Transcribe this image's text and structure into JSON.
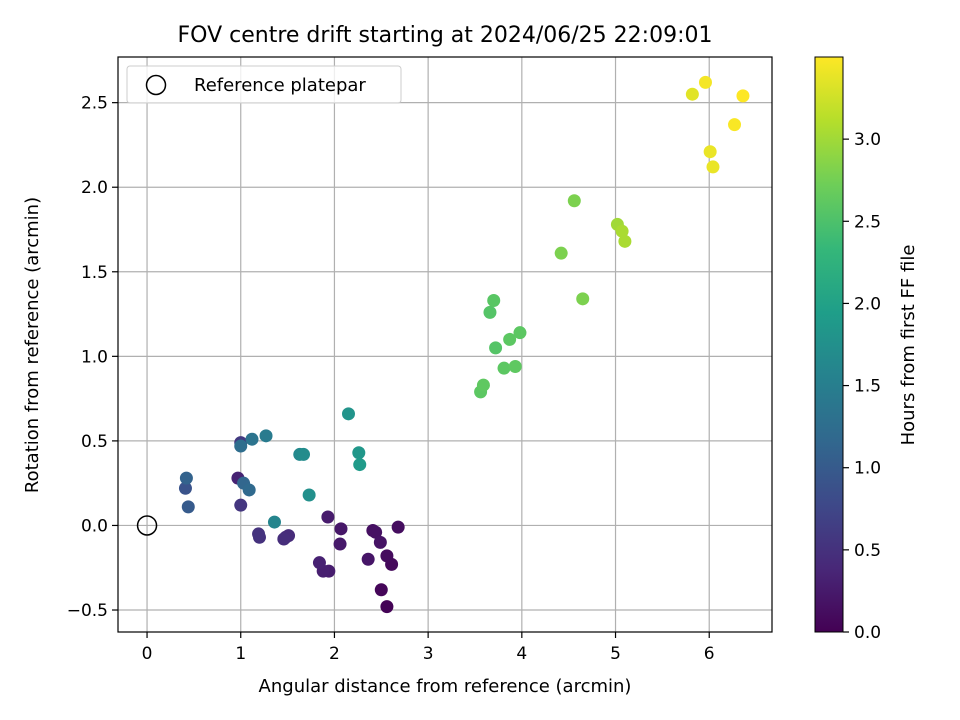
{
  "chart_data": {
    "type": "scatter",
    "title": "FOV centre drift starting at 2024/06/25 22:09:01",
    "xlabel": "Angular distance from reference (arcmin)",
    "ylabel": "Rotation from reference (arcmin)",
    "xlim": [
      -0.31,
      6.67
    ],
    "ylim": [
      -0.63,
      2.77
    ],
    "xticks": [
      0,
      1,
      2,
      3,
      4,
      5,
      6
    ],
    "xtick_labels": [
      "0",
      "1",
      "2",
      "3",
      "4",
      "5",
      "6"
    ],
    "yticks": [
      -0.5,
      0.0,
      0.5,
      1.0,
      1.5,
      2.0,
      2.5
    ],
    "ytick_labels": [
      "−0.5",
      "0.0",
      "0.5",
      "1.0",
      "1.5",
      "2.0",
      "2.5"
    ],
    "grid": true,
    "legend": {
      "position": "top-left",
      "entries": [
        "Reference platepar"
      ]
    },
    "reference_point": {
      "x": 0,
      "y": 0,
      "label": "Reference platepar"
    },
    "colorbar": {
      "label": "Hours from first FF file",
      "min": 0.0,
      "max": 3.5,
      "ticks": [
        0.0,
        0.5,
        1.0,
        1.5,
        2.0,
        2.5,
        3.0
      ],
      "tick_labels": [
        "0.0",
        "0.5",
        "1.0",
        "1.5",
        "2.0",
        "2.5",
        "3.0"
      ],
      "colormap": "viridis",
      "stops": [
        "#440154",
        "#482878",
        "#3e4989",
        "#31688e",
        "#26828e",
        "#1f9e89",
        "#35b779",
        "#6ece58",
        "#b5de2b",
        "#fde725"
      ]
    },
    "points": [
      {
        "x": 2.56,
        "y": -0.48,
        "t": 0.02
      },
      {
        "x": 2.5,
        "y": -0.38,
        "t": 0.05
      },
      {
        "x": 2.61,
        "y": -0.23,
        "t": 0.08
      },
      {
        "x": 2.56,
        "y": -0.18,
        "t": 0.1
      },
      {
        "x": 2.68,
        "y": -0.01,
        "t": 0.12
      },
      {
        "x": 2.41,
        "y": -0.03,
        "t": 0.14
      },
      {
        "x": 2.44,
        "y": -0.04,
        "t": 0.16
      },
      {
        "x": 2.49,
        "y": -0.1,
        "t": 0.18
      },
      {
        "x": 2.36,
        "y": -0.2,
        "t": 0.2
      },
      {
        "x": 2.07,
        "y": -0.02,
        "t": 0.22
      },
      {
        "x": 2.06,
        "y": -0.11,
        "t": 0.24
      },
      {
        "x": 1.93,
        "y": 0.05,
        "t": 0.26
      },
      {
        "x": 1.94,
        "y": -0.27,
        "t": 0.28
      },
      {
        "x": 1.88,
        "y": -0.27,
        "t": 0.3
      },
      {
        "x": 1.84,
        "y": -0.22,
        "t": 0.32
      },
      {
        "x": 0.97,
        "y": 0.28,
        "t": 0.34
      },
      {
        "x": 1.48,
        "y": -0.07,
        "t": 0.42
      },
      {
        "x": 1.51,
        "y": -0.06,
        "t": 0.44
      },
      {
        "x": 1.46,
        "y": -0.08,
        "t": 0.46
      },
      {
        "x": 1.2,
        "y": -0.07,
        "t": 0.5
      },
      {
        "x": 1.19,
        "y": -0.05,
        "t": 0.52
      },
      {
        "x": 1.0,
        "y": 0.12,
        "t": 0.55
      },
      {
        "x": 1.0,
        "y": 0.49,
        "t": 0.6
      },
      {
        "x": 0.41,
        "y": 0.22,
        "t": 0.9
      },
      {
        "x": 0.44,
        "y": 0.11,
        "t": 1.0
      },
      {
        "x": 0.42,
        "y": 0.28,
        "t": 1.1
      },
      {
        "x": 1.03,
        "y": 0.25,
        "t": 1.15
      },
      {
        "x": 1.09,
        "y": 0.21,
        "t": 1.2
      },
      {
        "x": 1.0,
        "y": 0.47,
        "t": 1.25
      },
      {
        "x": 1.12,
        "y": 0.51,
        "t": 1.35
      },
      {
        "x": 1.27,
        "y": 0.53,
        "t": 1.45
      },
      {
        "x": 1.36,
        "y": 0.02,
        "t": 1.6
      },
      {
        "x": 1.63,
        "y": 0.42,
        "t": 1.65
      },
      {
        "x": 1.67,
        "y": 0.42,
        "t": 1.7
      },
      {
        "x": 1.73,
        "y": 0.18,
        "t": 1.75
      },
      {
        "x": 2.15,
        "y": 0.66,
        "t": 1.8
      },
      {
        "x": 2.26,
        "y": 0.43,
        "t": 1.85
      },
      {
        "x": 2.27,
        "y": 0.36,
        "t": 1.9
      },
      {
        "x": 3.56,
        "y": 0.79,
        "t": 2.6
      },
      {
        "x": 3.59,
        "y": 0.83,
        "t": 2.62
      },
      {
        "x": 3.66,
        "y": 1.26,
        "t": 2.55
      },
      {
        "x": 3.7,
        "y": 1.33,
        "t": 2.58
      },
      {
        "x": 3.72,
        "y": 1.05,
        "t": 2.55
      },
      {
        "x": 3.81,
        "y": 0.93,
        "t": 2.6
      },
      {
        "x": 3.87,
        "y": 1.1,
        "t": 2.6
      },
      {
        "x": 3.93,
        "y": 0.94,
        "t": 2.62
      },
      {
        "x": 3.98,
        "y": 1.14,
        "t": 2.6
      },
      {
        "x": 4.42,
        "y": 1.61,
        "t": 2.8
      },
      {
        "x": 4.56,
        "y": 1.92,
        "t": 2.8
      },
      {
        "x": 4.65,
        "y": 1.34,
        "t": 2.8
      },
      {
        "x": 5.02,
        "y": 1.78,
        "t": 3.0
      },
      {
        "x": 5.07,
        "y": 1.74,
        "t": 3.05
      },
      {
        "x": 5.1,
        "y": 1.68,
        "t": 3.05
      },
      {
        "x": 5.82,
        "y": 2.55,
        "t": 3.35
      },
      {
        "x": 5.96,
        "y": 2.62,
        "t": 3.45
      },
      {
        "x": 6.01,
        "y": 2.21,
        "t": 3.4
      },
      {
        "x": 6.04,
        "y": 2.12,
        "t": 3.4
      },
      {
        "x": 6.27,
        "y": 2.37,
        "t": 3.48
      },
      {
        "x": 6.36,
        "y": 2.54,
        "t": 3.5
      }
    ]
  }
}
